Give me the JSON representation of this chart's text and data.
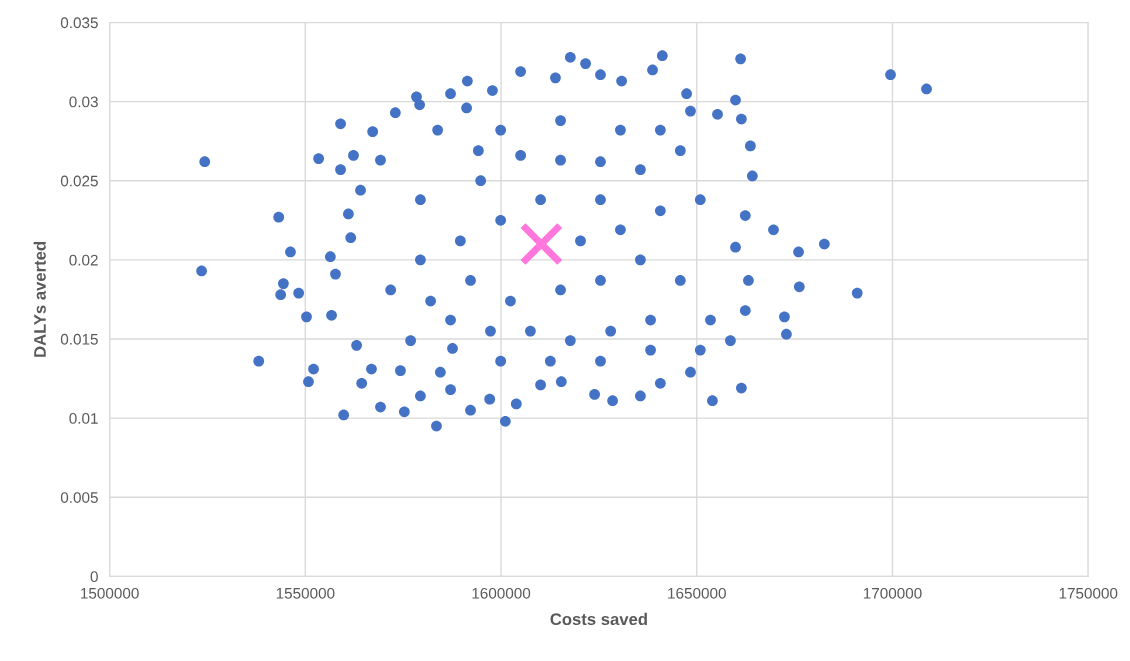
{
  "chart_data": {
    "type": "scatter",
    "xlabel": "Costs saved",
    "ylabel": "DALYs averted",
    "xlim": [
      1500000,
      1750000
    ],
    "xticks": [
      1500000,
      1550000,
      1600000,
      1650000,
      1700000,
      1750000
    ],
    "ylim": [
      0,
      0.035
    ],
    "yticks": [
      0,
      0.005,
      0.01,
      0.015,
      0.02,
      0.025,
      0.03,
      0.035
    ],
    "grid": true,
    "series": [
      {
        "color": "#4472c4",
        "marker": "circle",
        "x": [
          1524300,
          1523500,
          1538100,
          1699500,
          1708700,
          1691000,
          1682600,
          1676000,
          1676200,
          1672400,
          1672900,
          1669600,
          1661400,
          1661200,
          1654000,
          1543200,
          1546200,
          1544400,
          1543700,
          1548300,
          1550800,
          1552100,
          1550300,
          1553400,
          1559800,
          1583500,
          1601100,
          1617700,
          1641200,
          1591200,
          1591400,
          1559000,
          1578400,
          1579200,
          1573000,
          1567200,
          1562300,
          1559000,
          1564100,
          1561000,
          1561600,
          1556400,
          1557700,
          1556700,
          1563100,
          1566900,
          1564400,
          1569200,
          1575300,
          1579400,
          1584500,
          1587600,
          1592200,
          1597100,
          1603900,
          1610100,
          1615400,
          1623900,
          1628500,
          1635600,
          1640700,
          1648400,
          1650900,
          1658600,
          1662400,
          1663200,
          1659900,
          1662400,
          1664200,
          1663700,
          1661400,
          1655300,
          1659900,
          1647400,
          1648400,
          1638700,
          1630800,
          1625400,
          1621600,
          1613900,
          1605000,
          1597800,
          1587100,
          1583800,
          1594200,
          1605000,
          1615200,
          1625400,
          1635600,
          1645800,
          1650900,
          1640700,
          1630500,
          1620300,
          1610100,
          1599900,
          1589600,
          1579400,
          1571800,
          1582000,
          1592200,
          1602400,
          1615200,
          1625400,
          1635600,
          1645800,
          1653500,
          1638200,
          1628000,
          1617700,
          1607500,
          1597300,
          1587100,
          1576900,
          1574300,
          1587100,
          1599900,
          1612600,
          1625400,
          1638200,
          1594800,
          1579400,
          1569200,
          1625400,
          1630500,
          1615200,
          1599900,
          1640700
        ],
        "values": [
          0.0262,
          0.0193,
          0.0136,
          0.0317,
          0.0308,
          0.0179,
          0.021,
          0.0205,
          0.0183,
          0.0164,
          0.0153,
          0.0219,
          0.0119,
          0.0327,
          0.0111,
          0.0227,
          0.0205,
          0.0185,
          0.0178,
          0.0179,
          0.0123,
          0.0131,
          0.0164,
          0.0264,
          0.0102,
          0.0095,
          0.0098,
          0.0328,
          0.0329,
          0.0296,
          0.0313,
          0.0286,
          0.0303,
          0.0298,
          0.0293,
          0.0281,
          0.0266,
          0.0257,
          0.0244,
          0.0229,
          0.0214,
          0.0202,
          0.0191,
          0.0165,
          0.0146,
          0.0131,
          0.0122,
          0.0107,
          0.0104,
          0.0114,
          0.0129,
          0.0144,
          0.0105,
          0.0112,
          0.0109,
          0.0121,
          0.0123,
          0.0115,
          0.0111,
          0.0114,
          0.0122,
          0.0129,
          0.0143,
          0.0149,
          0.0168,
          0.0187,
          0.0208,
          0.0228,
          0.0253,
          0.0272,
          0.0289,
          0.0292,
          0.0301,
          0.0305,
          0.0294,
          0.032,
          0.0313,
          0.0317,
          0.0324,
          0.0315,
          0.0319,
          0.0307,
          0.0305,
          0.0282,
          0.0269,
          0.0266,
          0.0263,
          0.0262,
          0.0257,
          0.0269,
          0.0238,
          0.0231,
          0.0219,
          0.0212,
          0.0238,
          0.0225,
          0.0212,
          0.02,
          0.0181,
          0.0174,
          0.0187,
          0.0174,
          0.0181,
          0.0187,
          0.02,
          0.0187,
          0.0162,
          0.0162,
          0.0155,
          0.0149,
          0.0155,
          0.0155,
          0.0162,
          0.0149,
          0.013,
          0.0118,
          0.0136,
          0.0136,
          0.0136,
          0.0143,
          0.025,
          0.0238,
          0.0263,
          0.0238,
          0.0282,
          0.0288,
          0.0282,
          0.0282
        ]
      },
      {
        "color": "#ff77dd",
        "marker": "cross",
        "x": [
          1610300
        ],
        "values": [
          0.021
        ]
      }
    ]
  }
}
